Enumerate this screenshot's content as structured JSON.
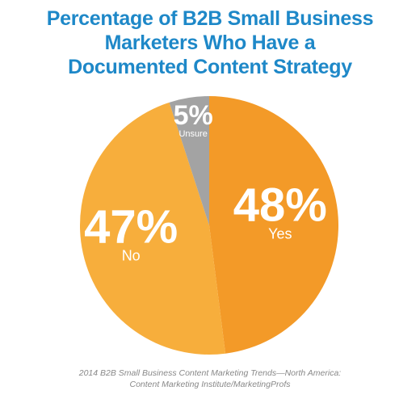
{
  "chart_data": {
    "type": "pie",
    "title_lines": [
      "Percentage of B2B Small Business",
      "Marketers Who Have a",
      "Documented Content Strategy"
    ],
    "slices": [
      {
        "label": "Yes",
        "value": 48,
        "value_label": "48%",
        "color": "#f39a28"
      },
      {
        "label": "No",
        "value": 47,
        "value_label": "47%",
        "color": "#f7ae3c"
      },
      {
        "label": "Unsure",
        "value": 5,
        "value_label": "5%",
        "color": "#a3a3a3"
      }
    ],
    "start": "12 o'clock, clockwise",
    "source_lines": [
      "2014 B2B Small Business Content Marketing Trends—North America:",
      "Content Marketing Institute/MarketingProfs"
    ]
  }
}
